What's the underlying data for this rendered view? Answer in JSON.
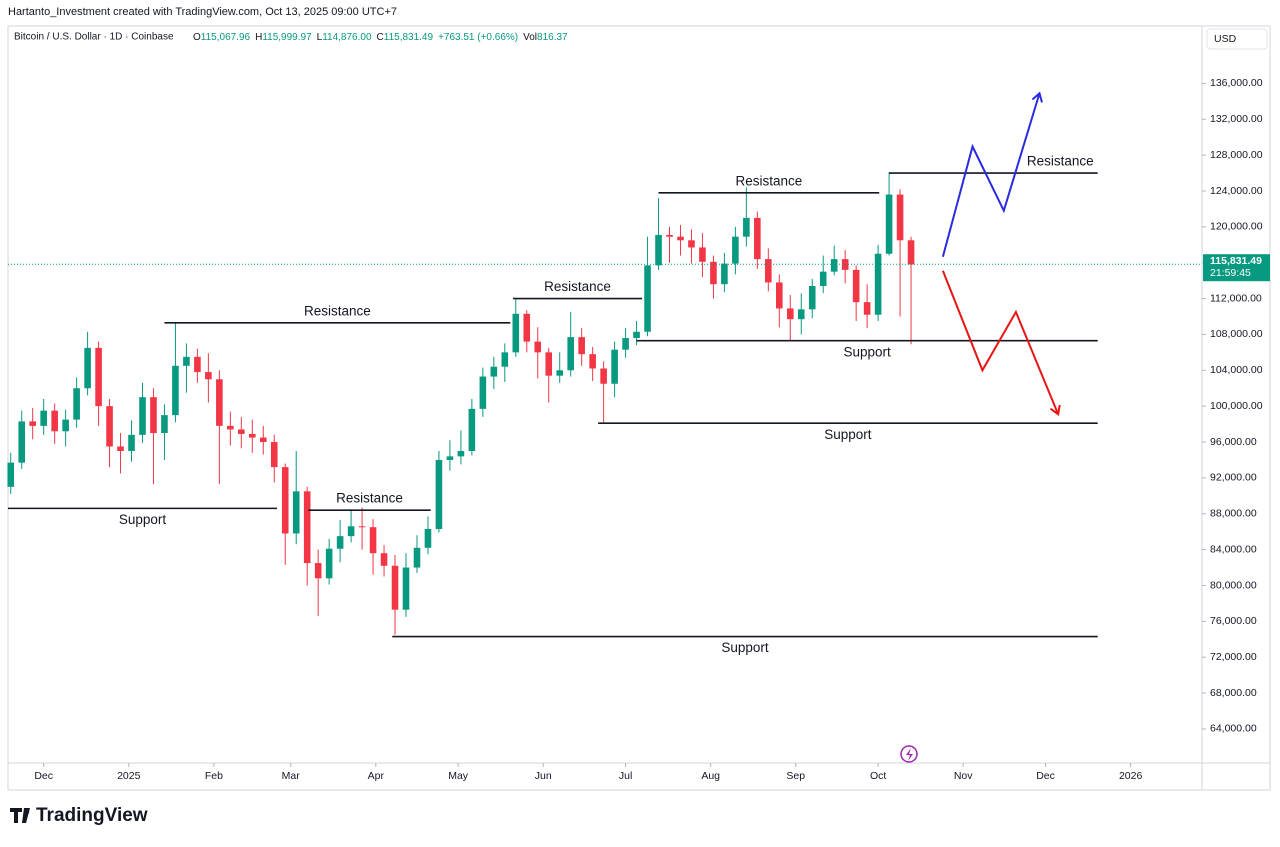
{
  "header": {
    "credit": "Hartanto_Investment created with TradingView.com, Oct 13, 2025 09:00 UTC+7",
    "symbol": "Bitcoin / U.S. Dollar · 1D · Coinbase",
    "o_key": "O",
    "o": "115,067.96",
    "h_key": "H",
    "h": "115,999.97",
    "l_key": "L",
    "l": "114,876.00",
    "c_key": "C",
    "c": "115,831.49",
    "change": "+763.51 (+0.66%)",
    "vol_key": "Vol",
    "vol": "816.37",
    "currency": "USD",
    "logo": "TradingView"
  },
  "chart_data": {
    "type": "candlestick",
    "up_color": "#089981",
    "down_color": "#f23645",
    "xlim": [
      -0.25,
      108.5
    ],
    "xticks": [
      {
        "value": 3,
        "label": "Dec"
      },
      {
        "value": 10.75,
        "label": "2025"
      },
      {
        "value": 18.5,
        "label": "Feb"
      },
      {
        "value": 25.5,
        "label": "Mar"
      },
      {
        "value": 33.25,
        "label": "Apr"
      },
      {
        "value": 40.75,
        "label": "May"
      },
      {
        "value": 48.5,
        "label": "Jun"
      },
      {
        "value": 56,
        "label": "Jul"
      },
      {
        "value": 63.75,
        "label": "Aug"
      },
      {
        "value": 71.5,
        "label": "Sep"
      },
      {
        "value": 79,
        "label": "Oct"
      },
      {
        "value": 86.75,
        "label": "Nov"
      },
      {
        "value": 94.25,
        "label": "Dec"
      },
      {
        "value": 102,
        "label": "2026"
      }
    ],
    "ylim": [
      60200,
      142400
    ],
    "yticks": [
      {
        "value": 64000,
        "label": "64,000.00"
      },
      {
        "value": 68000,
        "label": "68,000.00"
      },
      {
        "value": 72000,
        "label": "72,000.00"
      },
      {
        "value": 76000,
        "label": "76,000.00"
      },
      {
        "value": 80000,
        "label": "80,000.00"
      },
      {
        "value": 84000,
        "label": "84,000.00"
      },
      {
        "value": 88000,
        "label": "88,000.00"
      },
      {
        "value": 92000,
        "label": "92,000.00"
      },
      {
        "value": 96000,
        "label": "96,000.00"
      },
      {
        "value": 100000,
        "label": "100,000.00"
      },
      {
        "value": 104000,
        "label": "104,000.00"
      },
      {
        "value": 108000,
        "label": "108,000.00"
      },
      {
        "value": 112000,
        "label": "112,000.00"
      },
      {
        "value": 116000,
        "label": "116,000.00"
      },
      {
        "value": 120000,
        "label": "120,000.00"
      },
      {
        "value": 124000,
        "label": "124,000.00"
      },
      {
        "value": 128000,
        "label": "128,000.00"
      },
      {
        "value": 132000,
        "label": "132,000.00"
      },
      {
        "value": 136000,
        "label": "136,000.00"
      }
    ],
    "open": [
      91000,
      93700,
      98300,
      97800,
      99500,
      97200,
      98500,
      102000,
      106500,
      100000,
      95500,
      95000,
      96800,
      101000,
      97000,
      99000,
      104500,
      105500,
      103800,
      103000,
      97800,
      97400,
      96900,
      96500,
      96000,
      93200,
      85800,
      90500,
      82500,
      80800,
      84100,
      85500,
      86600,
      86500,
      83600,
      82200,
      77300,
      82000,
      84200,
      86300,
      94000,
      94400,
      95000,
      99700,
      103300,
      104400,
      106000,
      110300,
      107200,
      106000,
      103400,
      104000,
      107700,
      105800,
      104200,
      102500,
      106300,
      107600,
      108300,
      115700,
      119100,
      118900,
      118500,
      117700,
      116100,
      113600,
      115900,
      118900,
      121000,
      116400,
      113800,
      110900,
      109700,
      110800,
      113400,
      115000,
      116400,
      115200,
      111600,
      110200,
      117000,
      123600,
      118500
    ],
    "high": [
      94800,
      99500,
      99800,
      100800,
      100300,
      99600,
      103200,
      108300,
      107200,
      100800,
      97000,
      98400,
      102600,
      102000,
      100200,
      109300,
      107000,
      106400,
      105900,
      104000,
      99400,
      98800,
      98500,
      97800,
      96800,
      93600,
      95000,
      91000,
      84000,
      85200,
      87300,
      88500,
      88700,
      87400,
      84500,
      83400,
      83600,
      85600,
      87700,
      95000,
      96200,
      97300,
      100800,
      104300,
      105500,
      107000,
      111900,
      110700,
      108800,
      106500,
      106000,
      110500,
      108700,
      106600,
      105000,
      107200,
      108700,
      109500,
      118900,
      123200,
      120000,
      120200,
      119700,
      119300,
      116800,
      117100,
      120000,
      124400,
      121700,
      117600,
      114700,
      112400,
      112600,
      114200,
      116800,
      117900,
      117400,
      115700,
      113600,
      118000,
      126100,
      124200,
      118900
    ],
    "low": [
      90200,
      93000,
      96300,
      96800,
      95800,
      95500,
      97600,
      101200,
      97800,
      93200,
      92500,
      93800,
      95900,
      91300,
      94000,
      98200,
      101500,
      102600,
      100400,
      91300,
      95600,
      95300,
      94800,
      94600,
      91500,
      82300,
      84600,
      80000,
      76600,
      80100,
      82600,
      84800,
      84000,
      81200,
      81000,
      74500,
      76500,
      81400,
      83500,
      85900,
      92800,
      93500,
      94500,
      98800,
      101900,
      102700,
      105500,
      106000,
      103100,
      100400,
      102600,
      103300,
      104500,
      102800,
      98200,
      101000,
      105400,
      106800,
      107800,
      115200,
      116000,
      116800,
      115900,
      114400,
      112000,
      112700,
      114700,
      117800,
      115300,
      112800,
      108800,
      107300,
      108000,
      109800,
      112600,
      114600,
      113700,
      109500,
      108700,
      109500,
      116800,
      110000,
      106900
    ],
    "close": [
      93700,
      98300,
      97800,
      99500,
      97200,
      98500,
      102000,
      106500,
      100000,
      95500,
      95000,
      96800,
      101000,
      97000,
      99000,
      104500,
      105500,
      103800,
      103000,
      97800,
      97400,
      96900,
      96500,
      96000,
      93200,
      85800,
      90500,
      82500,
      80800,
      84100,
      85500,
      86600,
      86500,
      83600,
      82200,
      77300,
      82000,
      84200,
      86300,
      94000,
      94400,
      95000,
      99700,
      103300,
      104400,
      106000,
      110300,
      107200,
      106000,
      103400,
      104000,
      107700,
      105800,
      104200,
      102500,
      106300,
      107600,
      108300,
      115700,
      119100,
      118900,
      118500,
      117700,
      116100,
      113600,
      115900,
      118900,
      121000,
      116400,
      113800,
      110900,
      109700,
      110800,
      113400,
      115000,
      116400,
      115200,
      111600,
      110200,
      117000,
      123600,
      118500,
      115800
    ],
    "price_line": {
      "value": 115831.49,
      "label": "115,831.49",
      "countdown": "21:59:45",
      "color": "#089981"
    },
    "levels": [
      {
        "text": "Support",
        "value": 88600,
        "x": [
          -0.25,
          24.25
        ],
        "placement": "below"
      },
      {
        "text": "Resistance",
        "value": 109300,
        "x": [
          14,
          45.5
        ],
        "placement": "above"
      },
      {
        "text": "Resistance",
        "value": 88400,
        "x": [
          27.1,
          38.25
        ],
        "placement": "above"
      },
      {
        "text": "Support",
        "value": 74300,
        "x": [
          34.75,
          99
        ],
        "placement": "below"
      },
      {
        "text": "Resistance",
        "value": 112000,
        "x": [
          45.75,
          57.5
        ],
        "placement": "above"
      },
      {
        "text": "Support",
        "value": 98100,
        "x": [
          53.5,
          99
        ],
        "placement": "below"
      },
      {
        "text": "Support",
        "value": 107300,
        "x": [
          57,
          99
        ],
        "placement": "below"
      },
      {
        "text": "Resistance",
        "value": 123800,
        "x": [
          59,
          79.1
        ],
        "placement": "above"
      },
      {
        "text": "Resistance",
        "value": 126000,
        "x": [
          80,
          99
        ],
        "placement": "above-right"
      }
    ],
    "projections": [
      {
        "color": "#2a2ae0",
        "x": [
          84.9,
          87.6,
          90.45,
          93.7
        ],
        "values": [
          116660,
          128960,
          121800,
          134900
        ]
      },
      {
        "color": "#e81515",
        "x": [
          84.9,
          88.5,
          91.55,
          95.4
        ],
        "values": [
          115100,
          104000,
          110500,
          99100
        ]
      }
    ]
  }
}
